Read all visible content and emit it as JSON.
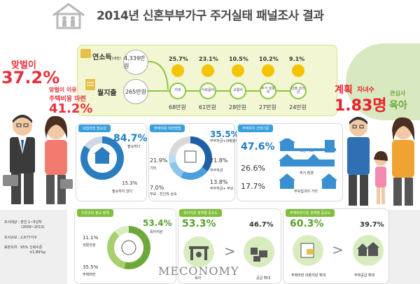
{
  "header": {
    "title": "2014년 신혼부부가구 주거실태 패널조사 결과"
  },
  "income_section": {
    "income_label": "연소득",
    "income_unit_note": "(세전)",
    "income_value": "4,339만원",
    "expense_label": "월지출",
    "expense_value": "265만원",
    "items": [
      {
        "pct": "25.7%",
        "name": "저축",
        "amount": "68만원"
      },
      {
        "pct": "23.1%",
        "name": "식료품비",
        "amount": "61만원"
      },
      {
        "pct": "10.5%",
        "name": "교통비",
        "amount": "28만원"
      },
      {
        "pct": "10.2%",
        "name": "주거 생활비",
        "amount": "27만원"
      },
      {
        "pct": "9.1%",
        "name": "대출 원리금",
        "amount": "24만원"
      }
    ]
  },
  "left_stats": {
    "dual_income_label": "맞벌이",
    "dual_income_value": "37.2%",
    "reason_label_1": "맞벌이 이유",
    "reason_label_2": "주택비용 마련",
    "reason_value": "41.2%"
  },
  "right_stats": {
    "plan_label_1": "계획",
    "plan_label_2": "자녀수",
    "plan_value": "1.83명",
    "concern_label": "관심사",
    "concern_value": "육아"
  },
  "panel_loan": {
    "title": "내집마련 필요성",
    "needed_pct": "84.7%",
    "needed_label": "필요하다",
    "not_needed_pct": "15.3%",
    "not_needed_label": "필요하지 않다",
    "chart_data": {
      "type": "pie",
      "title": "내집마련 필요성",
      "categories": [
        "필요하다",
        "필요하지 않다"
      ],
      "values": [
        84.7,
        15.3
      ]
    }
  },
  "panel_funding": {
    "title": "주택비용 마련방법",
    "items": [
      {
        "pct": "35.5%",
        "label": "부부자금+대출융자"
      },
      {
        "pct": "21.8%",
        "label": "부부자금"
      },
      {
        "pct": "21.9%",
        "label": "기타"
      },
      {
        "pct": "13.8%",
        "label": "부부자금+ 부모 · 친인척 상속"
      },
      {
        "pct": "7.0%",
        "label": "부모 · 친인척 상속"
      }
    ],
    "chart_data": {
      "type": "pie",
      "title": "주택비용 마련방법",
      "categories": [
        "부부자금+대출융자",
        "부부자금",
        "부부자금+ 부모 · 친인척 상속",
        "부모 · 친인척 상속",
        "기타"
      ],
      "values": [
        35.5,
        21.8,
        13.8,
        7.0,
        21.9
      ]
    }
  },
  "panel_location": {
    "title": "주택위치 선택기준",
    "items": [
      {
        "pct": "47.6%",
        "label": "직장 거리"
      },
      {
        "pct": "26.6%",
        "label": "주거 환경"
      },
      {
        "pct": "17.7%",
        "label": "부모집과의 거리"
      }
    ]
  },
  "sidebar_info": {
    "line1": "조사대상 : 혼인 1~5년차",
    "line1b": "(2009~2013)",
    "line2": "조사규모 : 2,677가구",
    "line3": "표본오차 : 95% 신뢰수준",
    "line3b": "±1.89%p"
  },
  "panel_support": {
    "title": "지원강화 필요 정책",
    "items": [
      {
        "pct": "53.4%",
        "label": "육아지원"
      },
      {
        "pct": "11.1%",
        "label": "생활안정"
      },
      {
        "pct": "35.5%",
        "label": "주택마련"
      }
    ],
    "chart_data": {
      "type": "pie",
      "title": "지원강화 필요 정책",
      "categories": [
        "육아지원",
        "주택마련",
        "생활안정"
      ],
      "values": [
        53.4,
        35.5,
        11.1
      ]
    }
  },
  "panel_childcare": {
    "title": "육아지원 정책별 중요도",
    "left_pct": "53.3%",
    "left_label": "육아",
    "right_pct": "46.7%",
    "right_label": "공급 확대"
  },
  "panel_housing": {
    "title": "주택마련지원 정책별 중요도",
    "left_pct": "60.3%",
    "left_label": "주택마련 대출지원 확대",
    "right_pct": "39.7%",
    "right_label": "주택공급 확대"
  },
  "watermark": "MECONOMY",
  "colors": {
    "accent_green": "#8cc63f",
    "accent_blue": "#3aa0dc",
    "accent_red": "#e5313b",
    "accent_yellow": "#f5c400"
  }
}
